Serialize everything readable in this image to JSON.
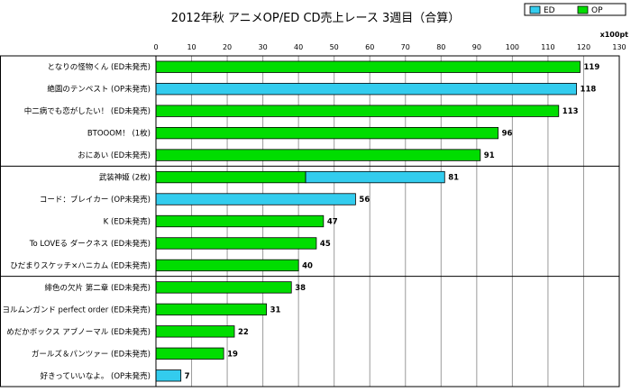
{
  "chart_data": {
    "type": "bar",
    "orientation": "horizontal",
    "stacked": true,
    "title": "2012年秋 アニメOP/ED CD売上レース 3週目（合算）",
    "unit_label": "x100pt",
    "xlim": [
      0,
      130
    ],
    "x_ticks": [
      0,
      10,
      20,
      30,
      40,
      50,
      60,
      70,
      80,
      90,
      100,
      110,
      120,
      130
    ],
    "grid": true,
    "legend_position": "top-right",
    "series": [
      {
        "name": "ED",
        "color": "#33ccee"
      },
      {
        "name": "OP",
        "color": "#00dd00"
      }
    ],
    "group_separators_after": [
      4,
      9
    ],
    "bars": [
      {
        "label": "となりの怪物くん (ED未発売)",
        "total": 119,
        "segments": [
          {
            "series": "OP",
            "value": 119
          }
        ]
      },
      {
        "label": "絶園のテンペスト (OP未発売)",
        "total": 118,
        "segments": [
          {
            "series": "ED",
            "value": 118
          }
        ]
      },
      {
        "label": "中二病でも恋がしたい！ (ED未発売)",
        "total": 113,
        "segments": [
          {
            "series": "OP",
            "value": 113
          }
        ]
      },
      {
        "label": "BTOOOM！ (1枚)",
        "total": 96,
        "segments": [
          {
            "series": "OP",
            "value": 96
          }
        ]
      },
      {
        "label": "おにあい (ED未発売)",
        "total": 91,
        "segments": [
          {
            "series": "OP",
            "value": 91
          }
        ]
      },
      {
        "label": "武装神姫 (2枚)",
        "total": 81,
        "segments": [
          {
            "series": "OP",
            "value": 42
          },
          {
            "series": "ED",
            "value": 39
          }
        ]
      },
      {
        "label": "コード：ブレイカー (OP未発売)",
        "total": 56,
        "segments": [
          {
            "series": "ED",
            "value": 56
          }
        ]
      },
      {
        "label": "K (ED未発売)",
        "total": 47,
        "segments": [
          {
            "series": "OP",
            "value": 47
          }
        ]
      },
      {
        "label": "To LOVEる ダークネス (ED未発売)",
        "total": 45,
        "segments": [
          {
            "series": "OP",
            "value": 45
          }
        ]
      },
      {
        "label": "ひだまりスケッチ×ハニカム (ED未発売)",
        "total": 40,
        "segments": [
          {
            "series": "OP",
            "value": 40
          }
        ]
      },
      {
        "label": "緋色の欠片 第二章 (ED未発売)",
        "total": 38,
        "segments": [
          {
            "series": "OP",
            "value": 38
          }
        ]
      },
      {
        "label": "ヨルムンガンド perfect order (ED未発売)",
        "total": 31,
        "segments": [
          {
            "series": "OP",
            "value": 31
          }
        ]
      },
      {
        "label": "めだかボックス アブノーマル (ED未発売)",
        "total": 22,
        "segments": [
          {
            "series": "OP",
            "value": 22
          }
        ]
      },
      {
        "label": "ガールズ＆パンツァー (ED未発売)",
        "total": 19,
        "segments": [
          {
            "series": "OP",
            "value": 19
          }
        ]
      },
      {
        "label": "好きっていいなよ。 (OP未発売)",
        "total": 7,
        "segments": [
          {
            "series": "ED",
            "value": 7
          }
        ]
      }
    ]
  }
}
